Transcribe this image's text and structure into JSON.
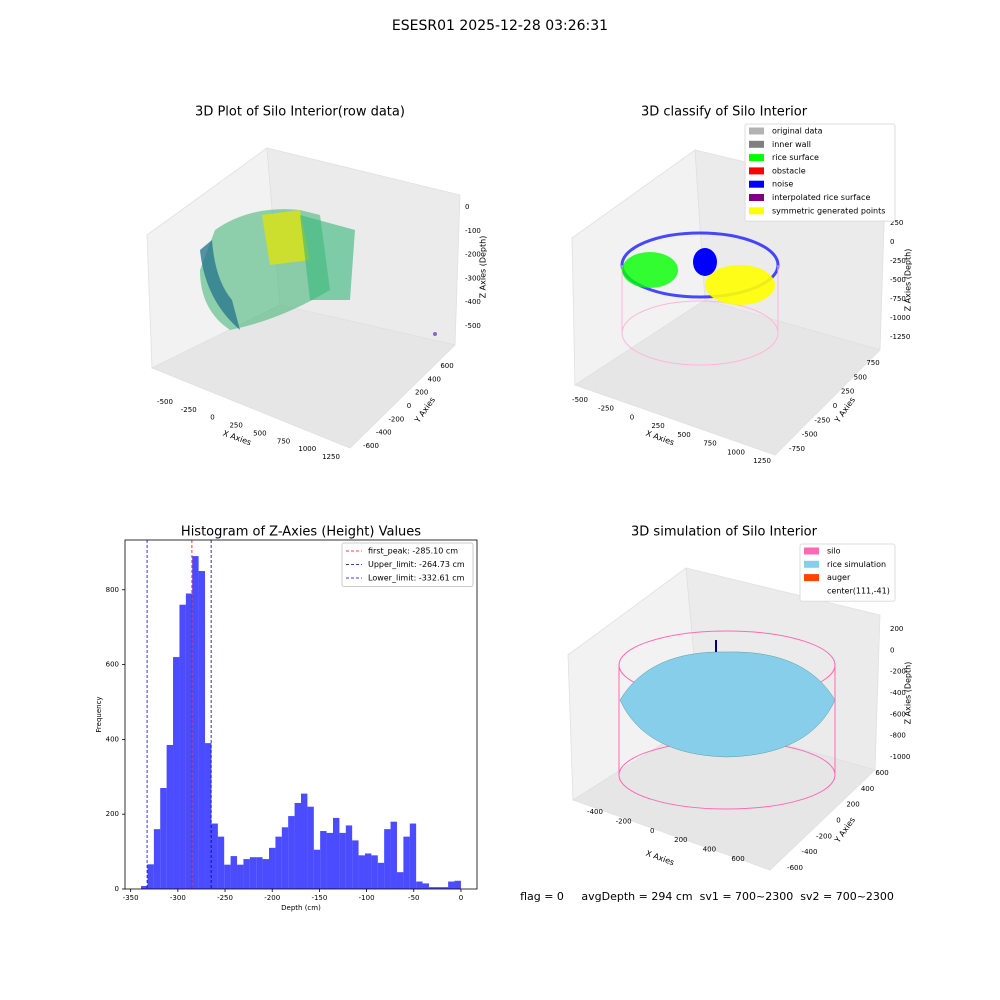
{
  "title": "ESESR01 2025-12-28 03:26:31",
  "chart_data": [
    {
      "type": "scatter3d",
      "title": "3D Plot of Silo Interior(row data)",
      "x_label": "X Axies",
      "y_label": "Y Axies",
      "z_label": "Z Axies (Depth)",
      "xticks": [
        -500,
        -250,
        0,
        250,
        500,
        750,
        1000,
        1250
      ],
      "yticks": [
        -600,
        -400,
        -200,
        0,
        200,
        400,
        600
      ],
      "zticks": [
        0,
        -100,
        -200,
        -300,
        -400,
        -500
      ]
    },
    {
      "type": "scatter3d",
      "title": "3D classify of Silo Interior",
      "x_label": "X Axies",
      "y_label": "Y Axies",
      "z_label": "Z Axies (Depth)",
      "xticks": [
        -500,
        -250,
        0,
        250,
        500,
        750,
        1000,
        1250
      ],
      "yticks": [
        -750,
        -500,
        -250,
        0,
        250,
        500,
        750
      ],
      "zticks": [
        250,
        0,
        -250,
        -500,
        -750,
        -1000,
        -1250
      ],
      "legend": [
        {
          "name": "original data",
          "color": "#b3b3b3"
        },
        {
          "name": "inner wall",
          "color": "#808080"
        },
        {
          "name": "rice surface",
          "color": "#00ff00"
        },
        {
          "name": "obstacle",
          "color": "#ff0000"
        },
        {
          "name": "noise",
          "color": "#0000ff"
        },
        {
          "name": "interpolated rice surface",
          "color": "#800080"
        },
        {
          "name": "symmetric generated points",
          "color": "#ffff00"
        }
      ]
    },
    {
      "type": "histogram",
      "title": "Histogram of Z-Axies (Height) Values",
      "x_label": "Depth (cm)",
      "y_label": "Frequency",
      "color": "#0000ff",
      "alpha": 0.7,
      "bins": [
        -339.0,
        -332.2,
        -325.4,
        -318.7,
        -311.9,
        -305.1,
        -298.3,
        -291.5,
        -284.8,
        -278.0,
        -271.2,
        -264.4,
        -257.6,
        -250.9,
        -244.1,
        -237.3,
        -230.5,
        -223.7,
        -217.0,
        -210.2,
        -203.4,
        -196.6,
        -189.8,
        -183.1,
        -176.3,
        -169.5,
        -162.7,
        -155.9,
        -149.2,
        -142.4,
        -135.6,
        -128.8,
        -122.0,
        -115.3,
        -108.5,
        -101.7,
        -94.9,
        -88.1,
        -81.4,
        -74.6,
        -67.8,
        -61.0,
        -54.2,
        -47.5,
        -40.7,
        -33.9,
        -27.1,
        -20.3,
        -13.6,
        -6.8,
        0.0
      ],
      "counts": [
        8,
        66,
        160,
        270,
        385,
        620,
        760,
        790,
        890,
        850,
        390,
        175,
        140,
        65,
        88,
        65,
        80,
        85,
        85,
        80,
        110,
        140,
        165,
        195,
        230,
        255,
        220,
        105,
        155,
        150,
        190,
        150,
        170,
        130,
        90,
        95,
        90,
        70,
        160,
        180,
        45,
        140,
        175,
        20,
        15,
        5,
        5,
        5,
        20,
        22
      ],
      "xlim": [
        -356,
        17
      ],
      "ylim": [
        0,
        933
      ],
      "xticks": [
        -350,
        -300,
        -250,
        -200,
        -150,
        -100,
        -50,
        0
      ],
      "yticks": [
        0,
        200,
        400,
        600,
        800
      ],
      "lines": [
        {
          "label": "first_peak: -285.10 cm",
          "value": -285.1,
          "color": "#ff0000"
        },
        {
          "label": "Upper_limit: -264.73 cm",
          "value": -264.73,
          "color": "#00008b"
        },
        {
          "label": "Lower_limit: -332.61 cm",
          "value": -332.61,
          "color": "#0000ff"
        }
      ]
    },
    {
      "type": "surface3d",
      "title": "3D simulation of Silo Interior",
      "x_label": "X Axies",
      "y_label": "Y Axies",
      "z_label": "Z Axies (Depth)",
      "xticks": [
        -400,
        -200,
        0,
        200,
        400,
        600
      ],
      "yticks": [
        -600,
        -400,
        -200,
        0,
        200,
        400,
        600
      ],
      "zticks": [
        200,
        0,
        -200,
        -400,
        -600,
        -800,
        -1000
      ],
      "legend": [
        {
          "name": "silo",
          "color": "#ff69b4"
        },
        {
          "name": "rice simulation",
          "color": "#87ceeb"
        },
        {
          "name": "auger",
          "color": "#ff4500"
        },
        {
          "name": "center(111,-41)",
          "color": "#ffffff"
        }
      ],
      "footer": "flag = 0     avgDepth = 294 cm  sv1 = 700~2300  sv2 = 700~2300"
    }
  ]
}
